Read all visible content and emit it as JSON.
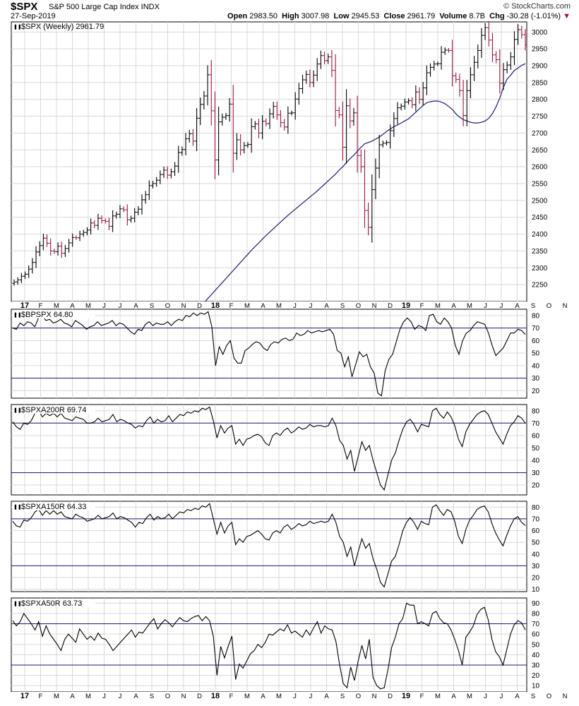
{
  "header": {
    "symbol": "$SPX",
    "description": "S&P 500 Large Cap Index INDX",
    "date": "27-Sep-2019",
    "watermark": "© StockCharts.com",
    "open_label": "Open",
    "open": "2983.50",
    "high_label": "High",
    "high": "3007.98",
    "low_label": "Low",
    "low": "2945.53",
    "close_label": "Close",
    "close": "2961.79",
    "volume_label": "Volume",
    "volume": "8.7B",
    "change_label": "Chg",
    "change": "-30.28 (-1.01%)",
    "change_arrow": "▼"
  },
  "x_axis": {
    "labels": [
      "17",
      "F",
      "M",
      "A",
      "M",
      "J",
      "J",
      "A",
      "S",
      "O",
      "N",
      "D",
      "18",
      "F",
      "M",
      "A",
      "M",
      "J",
      "J",
      "A",
      "S",
      "O",
      "N",
      "D",
      "19",
      "F",
      "M",
      "A",
      "M",
      "J",
      "J",
      "A",
      "S",
      "O",
      "N"
    ],
    "bold_labels": [
      "17",
      "18",
      "19"
    ]
  },
  "colors": {
    "price_up": "#000000",
    "price_down": "#a0133b",
    "moving_average": "#1c1c7a",
    "reference_line": "#1c1c7a",
    "indicator_line": "#000000",
    "grid": "#d9d9d9"
  },
  "chart_data": [
    {
      "type": "ohlc",
      "panel": "price",
      "legend": "$SPX (Weekly) 2961.79",
      "ylim": [
        2200,
        3030
      ],
      "y_ticks": [
        2250,
        2300,
        2350,
        2400,
        2450,
        2500,
        2550,
        2600,
        2650,
        2700,
        2750,
        2800,
        2850,
        2900,
        2950,
        3000
      ],
      "grid": true,
      "close": [
        2258,
        2264,
        2275,
        2281,
        2296,
        2316,
        2347,
        2366,
        2388,
        2373,
        2350,
        2348,
        2364,
        2343,
        2357,
        2374,
        2390,
        2389,
        2400,
        2405,
        2412,
        2433,
        2426,
        2447,
        2440,
        2438,
        2423,
        2454,
        2459,
        2475,
        2472,
        2442,
        2447,
        2465,
        2474,
        2502,
        2517,
        2544,
        2550,
        2560,
        2577,
        2590,
        2575,
        2585,
        2602,
        2642,
        2651,
        2683,
        2698,
        2676,
        2744,
        2785,
        2810,
        2873,
        2766,
        2620,
        2733,
        2747,
        2752,
        2786,
        2640,
        2680,
        2650,
        2663,
        2666,
        2719,
        2727,
        2700,
        2735,
        2728,
        2757,
        2779,
        2754,
        2731,
        2718,
        2759,
        2760,
        2801,
        2832,
        2858,
        2874,
        2850,
        2872,
        2905,
        2930,
        2915,
        2926,
        2886,
        2767,
        2754,
        2658,
        2781,
        2736,
        2760,
        2633,
        2600,
        2470,
        2420,
        2532,
        2596,
        2665,
        2670,
        2672,
        2707,
        2743,
        2775,
        2780,
        2792,
        2796,
        2784,
        2822,
        2800,
        2834,
        2879,
        2895,
        2905,
        2906,
        2940,
        2946,
        2945,
        2870,
        2859,
        2826,
        2752,
        2826,
        2873,
        2910,
        2945,
        2990,
        3013,
        2976,
        2932,
        2918,
        2848,
        2888,
        2902,
        2926,
        2978,
        3007,
        2992,
        2962
      ],
      "moving_average": {
        "values": [
          2180,
          2196,
          2208,
          2220,
          2232,
          2244,
          2256,
          2268,
          2280,
          2292,
          2304,
          2316,
          2328,
          2340,
          2352,
          2363,
          2374,
          2385,
          2396,
          2406,
          2416,
          2426,
          2436,
          2446,
          2456,
          2465,
          2474,
          2483,
          2492,
          2501,
          2510,
          2519,
          2528,
          2538,
          2548,
          2558,
          2568,
          2578,
          2590,
          2600,
          2612,
          2624,
          2634,
          2646,
          2658,
          2668,
          2672,
          2676,
          2682,
          2688,
          2696,
          2705,
          2712,
          2719,
          2724,
          2730,
          2736,
          2742,
          2752,
          2762,
          2772,
          2782,
          2790,
          2793,
          2795,
          2795,
          2792,
          2787,
          2779,
          2770,
          2757,
          2747,
          2740,
          2736,
          2732,
          2730,
          2730,
          2732,
          2736,
          2744,
          2758,
          2778,
          2804,
          2836,
          2860,
          2872,
          2886,
          2893,
          2901,
          2906
        ]
      }
    },
    {
      "type": "line",
      "panel": "indicator",
      "legend": "$BPSPX 64.80",
      "ylim": [
        14,
        85
      ],
      "y_ticks": [
        20,
        30,
        40,
        50,
        60,
        70,
        80
      ],
      "reference_lines": [
        70,
        30
      ],
      "values": [
        70,
        69,
        74,
        72,
        75,
        74,
        71,
        78,
        80,
        76,
        77,
        74,
        75,
        77,
        74,
        73,
        71,
        76,
        74,
        72,
        69,
        71,
        72,
        75,
        72,
        73,
        74,
        76,
        72,
        74,
        73,
        70,
        67,
        65,
        69,
        68,
        73,
        75,
        72,
        74,
        73,
        73,
        75,
        72,
        75,
        77,
        76,
        80,
        79,
        82,
        80,
        82,
        81,
        83,
        71,
        40,
        55,
        49,
        56,
        60,
        46,
        42,
        42,
        52,
        54,
        57,
        59,
        58,
        54,
        52,
        57,
        59,
        58,
        61,
        62,
        60,
        61,
        66,
        64,
        65,
        68,
        66,
        67,
        68,
        67,
        68,
        69,
        65,
        52,
        50,
        39,
        47,
        31,
        41,
        51,
        47,
        49,
        39,
        34,
        18,
        16,
        36,
        45,
        49,
        59,
        69,
        75,
        78,
        75,
        69,
        72,
        71,
        68,
        80,
        81,
        75,
        73,
        78,
        75,
        70,
        56,
        49,
        60,
        66,
        68,
        72,
        75,
        74,
        73,
        66,
        56,
        48,
        51,
        54,
        60,
        66,
        66,
        69,
        68,
        64.8
      ]
    },
    {
      "type": "line",
      "panel": "indicator",
      "legend": "$SPXA200R 69.74",
      "ylim": [
        12,
        85
      ],
      "y_ticks": [
        20,
        30,
        40,
        50,
        60,
        70,
        80
      ],
      "reference_lines": [
        70,
        30
      ],
      "values": [
        71,
        67,
        65,
        70,
        69,
        72,
        78,
        80,
        75,
        78,
        76,
        78,
        75,
        78,
        74,
        73,
        72,
        75,
        74,
        73,
        70,
        70,
        71,
        74,
        71,
        72,
        73,
        77,
        71,
        73,
        72,
        70,
        69,
        66,
        68,
        67,
        72,
        75,
        70,
        73,
        71,
        72,
        76,
        71,
        74,
        77,
        76,
        79,
        78,
        80,
        79,
        82,
        81,
        83,
        72,
        58,
        68,
        62,
        66,
        68,
        53,
        57,
        52,
        57,
        58,
        60,
        61,
        59,
        54,
        52,
        60,
        62,
        60,
        64,
        66,
        62,
        64,
        67,
        65,
        66,
        69,
        67,
        68,
        68,
        67,
        68,
        74,
        68,
        56,
        52,
        41,
        48,
        31,
        43,
        55,
        48,
        52,
        40,
        30,
        20,
        16,
        28,
        40,
        46,
        56,
        65,
        71,
        73,
        69,
        63,
        69,
        68,
        67,
        80,
        82,
        77,
        74,
        79,
        75,
        68,
        57,
        51,
        63,
        69,
        73,
        77,
        79,
        80,
        77,
        70,
        63,
        58,
        53,
        61,
        68,
        71,
        76,
        74,
        70
      ]
    },
    {
      "type": "line",
      "panel": "indicator",
      "legend": "$SPXA150R 64.33",
      "ylim": [
        8,
        85
      ],
      "y_ticks": [
        10,
        20,
        30,
        40,
        50,
        60,
        70,
        80
      ],
      "reference_lines": [
        70,
        30
      ],
      "values": [
        68,
        64,
        63,
        69,
        68,
        71,
        76,
        78,
        73,
        77,
        74,
        77,
        74,
        76,
        72,
        71,
        70,
        74,
        72,
        71,
        68,
        69,
        70,
        73,
        70,
        71,
        72,
        75,
        70,
        72,
        71,
        69,
        67,
        63,
        67,
        66,
        71,
        74,
        69,
        72,
        70,
        71,
        74,
        70,
        73,
        76,
        75,
        78,
        77,
        79,
        78,
        81,
        80,
        83,
        70,
        57,
        67,
        58,
        64,
        67,
        48,
        53,
        50,
        55,
        56,
        58,
        60,
        57,
        53,
        52,
        58,
        60,
        58,
        63,
        65,
        61,
        63,
        66,
        64,
        65,
        68,
        66,
        67,
        68,
        67,
        68,
        74,
        67,
        55,
        50,
        38,
        46,
        30,
        42,
        53,
        45,
        49,
        36,
        27,
        16,
        12,
        23,
        34,
        38,
        48,
        60,
        67,
        71,
        67,
        61,
        68,
        66,
        65,
        80,
        82,
        77,
        73,
        78,
        76,
        68,
        55,
        49,
        61,
        69,
        73,
        78,
        80,
        81,
        76,
        66,
        58,
        52,
        47,
        56,
        64,
        70,
        72,
        67,
        64.33
      ]
    },
    {
      "type": "line",
      "panel": "indicator",
      "legend": "$SPXA50R 63.73",
      "ylim": [
        4,
        95
      ],
      "y_ticks": [
        10,
        20,
        30,
        40,
        50,
        60,
        70,
        80,
        90
      ],
      "reference_lines": [
        70,
        30
      ],
      "values": [
        73,
        68,
        72,
        80,
        75,
        70,
        64,
        72,
        58,
        68,
        60,
        55,
        50,
        44,
        55,
        60,
        56,
        52,
        65,
        60,
        55,
        58,
        54,
        61,
        56,
        55,
        50,
        44,
        48,
        52,
        56,
        60,
        64,
        57,
        62,
        61,
        66,
        71,
        75,
        65,
        70,
        74,
        71,
        67,
        72,
        76,
        73,
        72,
        75,
        77,
        78,
        73,
        77,
        73,
        58,
        20,
        48,
        37,
        48,
        58,
        16,
        31,
        27,
        34,
        41,
        44,
        50,
        47,
        52,
        60,
        59,
        62,
        65,
        63,
        69,
        61,
        63,
        60,
        57,
        64,
        59,
        66,
        72,
        61,
        68,
        65,
        64,
        53,
        30,
        12,
        8,
        28,
        15,
        34,
        49,
        36,
        55,
        18,
        10,
        7,
        8,
        25,
        47,
        57,
        70,
        75,
        90,
        88,
        88,
        70,
        72,
        70,
        68,
        80,
        82,
        75,
        71,
        70,
        64,
        55,
        44,
        30,
        57,
        62,
        68,
        79,
        84,
        86,
        74,
        55,
        43,
        38,
        30,
        45,
        60,
        69,
        73,
        71,
        64
      ]
    }
  ]
}
